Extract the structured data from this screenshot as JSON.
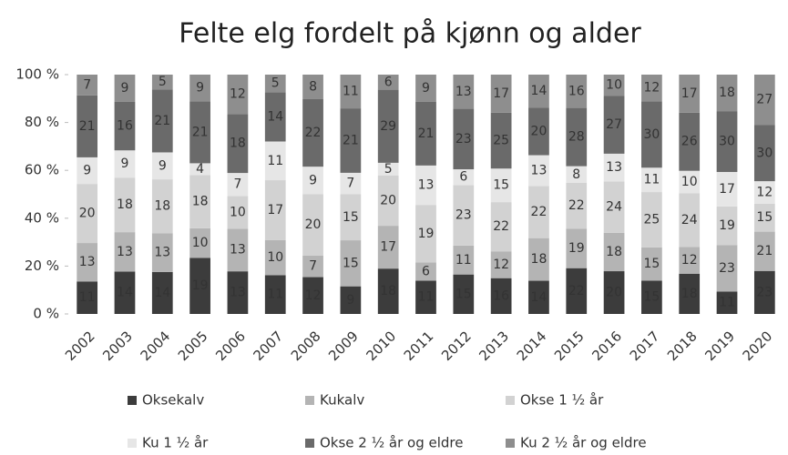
{
  "chart_data": {
    "type": "stacked_bar_percent",
    "title": "Felte elg fordelt på kjønn og alder",
    "categories": [
      "2002",
      "2003",
      "2004",
      "2005",
      "2006",
      "2007",
      "2008",
      "2009",
      "2010",
      "2011",
      "2012",
      "2013",
      "2014",
      "2015",
      "2016",
      "2017",
      "2018",
      "2019",
      "2020"
    ],
    "series": [
      {
        "name": "Oksekalv",
        "color": "#3c3c3c",
        "values": [
          11,
          14,
          14,
          19,
          13,
          11,
          12,
          9,
          18,
          11,
          15,
          16,
          14,
          22,
          20,
          15,
          18,
          11,
          23
        ]
      },
      {
        "name": "Kukalv",
        "color": "#b4b4b4",
        "values": [
          13,
          13,
          13,
          10,
          13,
          10,
          7,
          15,
          17,
          6,
          11,
          12,
          18,
          19,
          18,
          15,
          12,
          23,
          21
        ]
      },
      {
        "name": "Okse 1 ½ år",
        "color": "#d2d2d2",
        "values": [
          20,
          18,
          18,
          18,
          10,
          17,
          20,
          15,
          20,
          19,
          23,
          22,
          22,
          22,
          24,
          25,
          24,
          19,
          15
        ]
      },
      {
        "name": "Ku 1 ½ år",
        "color": "#e6e6e6",
        "values": [
          9,
          9,
          9,
          4,
          7,
          11,
          9,
          7,
          5,
          13,
          6,
          15,
          13,
          8,
          13,
          11,
          10,
          17,
          12
        ]
      },
      {
        "name": "Okse 2 ½ år og eldre",
        "color": "#6a6a6a",
        "values": [
          21,
          16,
          21,
          21,
          18,
          14,
          22,
          21,
          29,
          21,
          23,
          25,
          20,
          28,
          27,
          30,
          26,
          30,
          30
        ]
      },
      {
        "name": "Ku 2 ½ år og eldre",
        "color": "#8e8e8e",
        "values": [
          7,
          9,
          5,
          9,
          12,
          5,
          8,
          11,
          6,
          9,
          13,
          17,
          14,
          16,
          10,
          12,
          17,
          18,
          27
        ]
      }
    ],
    "ylim": [
      0,
      100
    ],
    "yticks": [
      {
        "value": 0,
        "label": "0 %"
      },
      {
        "value": 20,
        "label": "20 %"
      },
      {
        "value": 40,
        "label": "40 %"
      },
      {
        "value": 60,
        "label": "60 %"
      },
      {
        "value": 80,
        "label": "80 %"
      },
      {
        "value": 100,
        "label": "100 %"
      }
    ]
  }
}
